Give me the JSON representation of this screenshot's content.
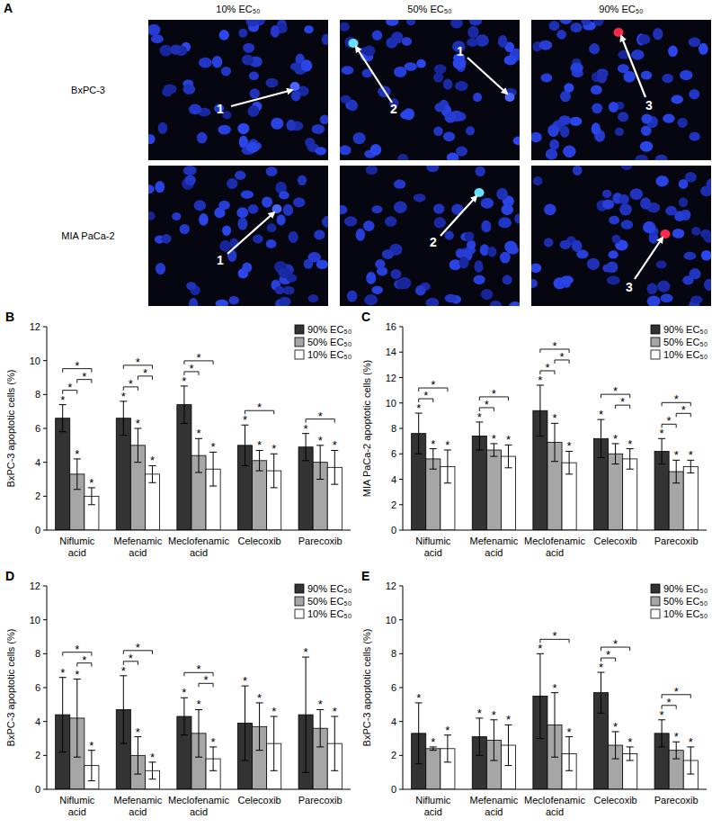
{
  "panel_a": {
    "label": "A",
    "columns": [
      "10% EC₅₀",
      "50% EC₅₀",
      "90% EC₅₀"
    ],
    "rows": [
      "BxPC-3",
      "MIA PaCa-2"
    ],
    "arrow_labels": [
      [
        [
          "1"
        ],
        [
          "1",
          "2"
        ],
        [
          "3"
        ]
      ],
      [
        [
          "1"
        ],
        [
          "2"
        ],
        [
          "3"
        ]
      ]
    ]
  },
  "chart_data": [
    {
      "type": "bar",
      "title": "B",
      "y_label": "BxPC-3 apoptotic cells (%)",
      "categories": [
        "Niflumic acid",
        "Mefenamic acid",
        "Meclofenamic acid",
        "Celecoxib",
        "Parecoxib"
      ],
      "series": [
        {
          "name": "90% EC₅₀",
          "color": "#333333",
          "values": [
            6.6,
            6.6,
            7.4,
            5.0,
            4.9
          ],
          "errors": [
            0.8,
            1.0,
            1.1,
            1.2,
            0.8
          ]
        },
        {
          "name": "50% EC₅₀",
          "color": "#a6a6a6",
          "values": [
            3.3,
            5.0,
            4.4,
            4.1,
            4.0
          ],
          "errors": [
            0.9,
            1.0,
            1.0,
            0.6,
            1.0
          ]
        },
        {
          "name": "10% EC₅₀",
          "color": "#ffffff",
          "values": [
            2.0,
            3.3,
            3.6,
            3.5,
            3.7
          ],
          "errors": [
            0.5,
            0.5,
            1.0,
            1.0,
            1.0
          ]
        }
      ],
      "bar_annotation": "*",
      "significance": [
        {
          "category": "Niflumic acid",
          "groups": [
            "90% EC₅₀",
            "50% EC₅₀"
          ],
          "label": "*"
        },
        {
          "category": "Niflumic acid",
          "groups": [
            "50% EC₅₀",
            "10% EC₅₀"
          ],
          "label": "*"
        },
        {
          "category": "Niflumic acid",
          "groups": [
            "90% EC₅₀",
            "10% EC₅₀"
          ],
          "label": "*"
        },
        {
          "category": "Mefenamic acid",
          "groups": [
            "90% EC₅₀",
            "50% EC₅₀"
          ],
          "label": "*"
        },
        {
          "category": "Mefenamic acid",
          "groups": [
            "50% EC₅₀",
            "10% EC₅₀"
          ],
          "label": "*"
        },
        {
          "category": "Mefenamic acid",
          "groups": [
            "90% EC₅₀",
            "10% EC₅₀"
          ],
          "label": "*"
        },
        {
          "category": "Meclofenamic acid",
          "groups": [
            "90% EC₅₀",
            "50% EC₅₀"
          ],
          "label": "*"
        },
        {
          "category": "Meclofenamic acid",
          "groups": [
            "90% EC₅₀",
            "10% EC₅₀"
          ],
          "label": "*"
        },
        {
          "category": "Celecoxib",
          "groups": [
            "90% EC₅₀",
            "10% EC₅₀"
          ],
          "label": "*"
        },
        {
          "category": "Parecoxib",
          "groups": [
            "90% EC₅₀",
            "10% EC₅₀"
          ],
          "label": "*"
        }
      ],
      "ylim": [
        0,
        12
      ],
      "yticks": [
        0,
        2,
        4,
        6,
        8,
        10,
        12
      ],
      "grid": false,
      "legend": "top-right"
    },
    {
      "type": "bar",
      "title": "C",
      "y_label": "MIA PaCa-2 apoptotic cells (%)",
      "categories": [
        "Niflumic acid",
        "Mefenamic acid",
        "Meclofenamic acid",
        "Celecoxib",
        "Parecoxib"
      ],
      "series": [
        {
          "name": "90% EC₅₀",
          "color": "#333333",
          "values": [
            7.6,
            7.4,
            9.4,
            7.2,
            6.2
          ],
          "errors": [
            1.6,
            1.1,
            2.0,
            1.5,
            1.0
          ]
        },
        {
          "name": "50% EC₅₀",
          "color": "#a6a6a6",
          "values": [
            5.6,
            6.3,
            6.9,
            6.0,
            4.6
          ],
          "errors": [
            0.8,
            0.5,
            1.5,
            0.8,
            0.9
          ]
        },
        {
          "name": "10% EC₅₀",
          "color": "#ffffff",
          "values": [
            5.0,
            5.8,
            5.3,
            5.6,
            5.0
          ],
          "errors": [
            1.3,
            0.9,
            0.9,
            0.8,
            0.5
          ]
        }
      ],
      "bar_annotation": "*",
      "significance": [
        {
          "category": "Niflumic acid",
          "groups": [
            "90% EC₅₀",
            "50% EC₅₀"
          ],
          "label": "*"
        },
        {
          "category": "Niflumic acid",
          "groups": [
            "90% EC₅₀",
            "10% EC₅₀"
          ],
          "label": "*"
        },
        {
          "category": "Mefenamic acid",
          "groups": [
            "90% EC₅₀",
            "50% EC₅₀"
          ],
          "label": "*"
        },
        {
          "category": "Mefenamic acid",
          "groups": [
            "90% EC₅₀",
            "10% EC₅₀"
          ],
          "label": "*"
        },
        {
          "category": "Meclofenamic acid",
          "groups": [
            "90% EC₅₀",
            "50% EC₅₀"
          ],
          "label": "*"
        },
        {
          "category": "Meclofenamic acid",
          "groups": [
            "50% EC₅₀",
            "10% EC₅₀"
          ],
          "label": "*"
        },
        {
          "category": "Meclofenamic acid",
          "groups": [
            "90% EC₅₀",
            "10% EC₅₀"
          ],
          "label": "*"
        },
        {
          "category": "Celecoxib",
          "groups": [
            "50% EC₅₀",
            "10% EC₅₀"
          ],
          "label": "*"
        },
        {
          "category": "Celecoxib",
          "groups": [
            "90% EC₅₀",
            "10% EC₅₀"
          ],
          "label": "*"
        },
        {
          "category": "Parecoxib",
          "groups": [
            "90% EC₅₀",
            "50% EC₅₀"
          ],
          "label": "*"
        },
        {
          "category": "Parecoxib",
          "groups": [
            "50% EC₅₀",
            "10% EC₅₀"
          ],
          "label": "*"
        },
        {
          "category": "Parecoxib",
          "groups": [
            "90% EC₅₀",
            "10% EC₅₀"
          ],
          "label": "*"
        }
      ],
      "ylim": [
        0,
        16
      ],
      "yticks": [
        0,
        2,
        4,
        6,
        8,
        10,
        12,
        14,
        16
      ],
      "grid": false,
      "legend": "top-right"
    },
    {
      "type": "bar",
      "title": "D",
      "y_label": "BxPC-3 apoptotic cells (%)",
      "categories": [
        "Niflumic acid",
        "Mefenamic acid",
        "Meclofenamic acid",
        "Celecoxib",
        "Parecoxib"
      ],
      "series": [
        {
          "name": "90% EC₅₀",
          "color": "#333333",
          "values": [
            4.4,
            4.7,
            4.3,
            3.9,
            4.4
          ],
          "errors": [
            2.2,
            2.0,
            1.1,
            2.2,
            3.4
          ]
        },
        {
          "name": "50% EC₅₀",
          "color": "#a6a6a6",
          "values": [
            4.2,
            2.0,
            3.3,
            3.7,
            3.6
          ],
          "errors": [
            2.3,
            1.1,
            1.4,
            1.4,
            1.1
          ]
        },
        {
          "name": "10% EC₅₀",
          "color": "#ffffff",
          "values": [
            1.4,
            1.1,
            1.8,
            2.7,
            2.7
          ],
          "errors": [
            0.9,
            0.5,
            0.7,
            1.6,
            1.6
          ]
        }
      ],
      "bar_annotation": "*",
      "significance": [
        {
          "category": "Niflumic acid",
          "groups": [
            "50% EC₅₀",
            "10% EC₅₀"
          ],
          "label": "*"
        },
        {
          "category": "Niflumic acid",
          "groups": [
            "90% EC₅₀",
            "10% EC₅₀"
          ],
          "label": "*"
        },
        {
          "category": "Mefenamic acid",
          "groups": [
            "90% EC₅₀",
            "50% EC₅₀"
          ],
          "label": "*"
        },
        {
          "category": "Mefenamic acid",
          "groups": [
            "90% EC₅₀",
            "10% EC₅₀"
          ],
          "label": "*"
        },
        {
          "category": "Meclofenamic acid",
          "groups": [
            "50% EC₅₀",
            "10% EC₅₀"
          ],
          "label": "*"
        },
        {
          "category": "Meclofenamic acid",
          "groups": [
            "90% EC₅₀",
            "10% EC₅₀"
          ],
          "label": "*"
        }
      ],
      "ylim": [
        0,
        12
      ],
      "yticks": [
        0,
        2,
        4,
        6,
        8,
        10,
        12
      ],
      "grid": false,
      "legend": "top-right"
    },
    {
      "type": "bar",
      "title": "E",
      "y_label": "BxPC-3 apoptotic cells (%)",
      "categories": [
        "Niflumic acid",
        "Mefenamic acid",
        "Meclofenamic acid",
        "Celecoxib",
        "Parecoxib"
      ],
      "series": [
        {
          "name": "90% EC₅₀",
          "color": "#333333",
          "values": [
            3.3,
            3.1,
            5.5,
            5.7,
            3.3
          ],
          "errors": [
            1.8,
            1.1,
            2.5,
            1.2,
            0.8
          ]
        },
        {
          "name": "50% EC₅₀",
          "color": "#a6a6a6",
          "values": [
            2.4,
            2.9,
            3.8,
            2.6,
            2.3
          ],
          "errors": [
            0.1,
            1.2,
            1.9,
            0.8,
            0.5
          ]
        },
        {
          "name": "10% EC₅₀",
          "color": "#ffffff",
          "values": [
            2.4,
            2.6,
            2.1,
            2.1,
            1.7
          ],
          "errors": [
            0.8,
            1.2,
            1.0,
            0.4,
            0.8
          ]
        }
      ],
      "bar_annotation": "*",
      "significance": [
        {
          "category": "Meclofenamic acid",
          "groups": [
            "90% EC₅₀",
            "10% EC₅₀"
          ],
          "label": "*"
        },
        {
          "category": "Celecoxib",
          "groups": [
            "90% EC₅₀",
            "50% EC₅₀"
          ],
          "label": "*"
        },
        {
          "category": "Celecoxib",
          "groups": [
            "90% EC₅₀",
            "10% EC₅₀"
          ],
          "label": "*"
        },
        {
          "category": "Parecoxib",
          "groups": [
            "90% EC₅₀",
            "50% EC₅₀"
          ],
          "label": "*"
        },
        {
          "category": "Parecoxib",
          "groups": [
            "90% EC₅₀",
            "10% EC₅₀"
          ],
          "label": "*"
        }
      ],
      "ylim": [
        0,
        12
      ],
      "yticks": [
        0,
        2,
        4,
        6,
        8,
        10,
        12
      ],
      "grid": false,
      "legend": "top-right"
    }
  ]
}
